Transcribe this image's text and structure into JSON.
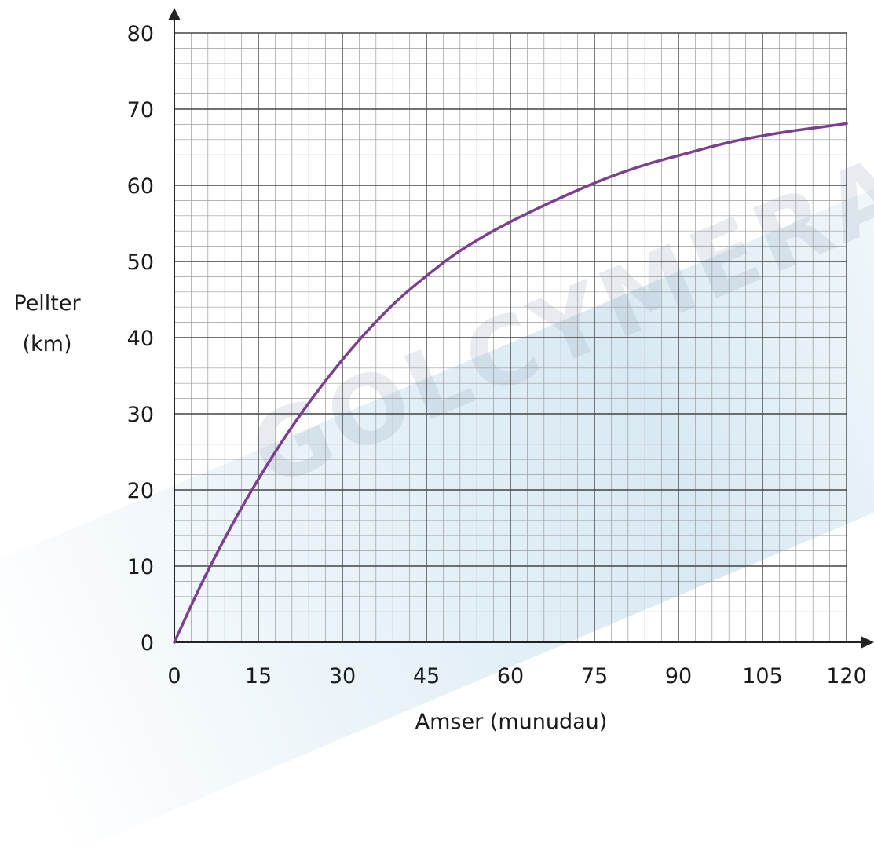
{
  "chart_data": {
    "type": "line",
    "title": "",
    "xlabel": "Amser (munudau)",
    "ylabel_lines": [
      "Pellter",
      "(km)"
    ],
    "xlim": [
      0,
      120
    ],
    "ylim": [
      0,
      80
    ],
    "x_ticks": [
      "0",
      "15",
      "30",
      "45",
      "60",
      "75",
      "90",
      "105",
      "120"
    ],
    "y_ticks": [
      "0",
      "10",
      "20",
      "30",
      "40",
      "50",
      "60",
      "70",
      "80"
    ],
    "x_major_step": 15,
    "y_major_step": 10,
    "minor_divisions": 5,
    "grid": true,
    "series": [
      {
        "color": "#7b3f8f",
        "x": [
          0,
          5,
          10,
          15,
          20,
          25,
          30,
          35,
          40,
          45,
          50,
          55,
          60,
          65,
          70,
          75,
          80,
          85,
          90,
          95,
          100,
          105,
          110,
          115,
          120
        ],
        "y": [
          0,
          7.9,
          15.0,
          21.4,
          27.2,
          32.4,
          37.1,
          41.3,
          45.0,
          48.1,
          50.9,
          53.2,
          55.2,
          57.0,
          58.7,
          60.3,
          61.7,
          62.9,
          63.9,
          64.9,
          65.8,
          66.5,
          67.1,
          67.6,
          68.1
        ]
      }
    ]
  },
  "colors": {
    "curve": "#7b3f8f",
    "major_grid": "#444444",
    "minor_grid": "#9c9c9c",
    "axis": "#222222",
    "watermark": "#c4ddec"
  },
  "watermark": {
    "text": "GOLCYMERAU"
  }
}
